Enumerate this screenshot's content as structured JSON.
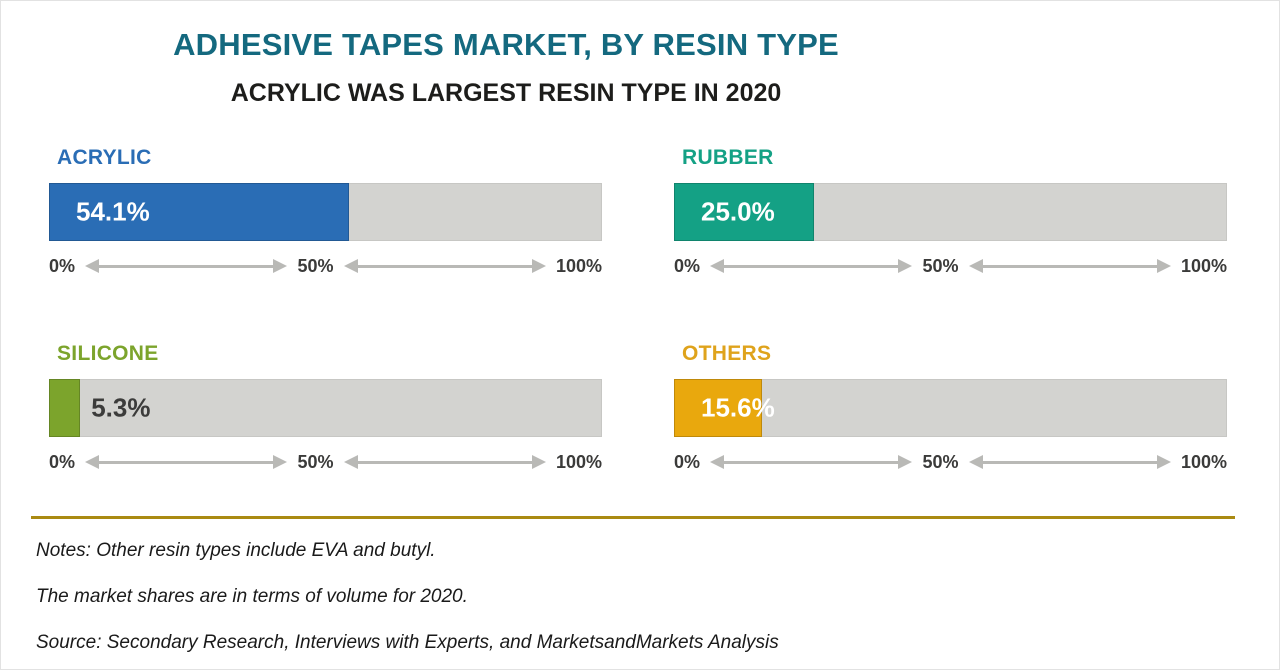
{
  "theme": {
    "title-color": "#14697f",
    "subtitle-color": "#1d1d1b",
    "track-color": "#d3d3d0",
    "axis-text-color": "#3b3b3a",
    "arrow-color": "#b9b9b6",
    "divider-color": "#aa8a12",
    "notes-color": "#1a1a1a"
  },
  "header": {
    "title": "ADHESIVE TAPES MARKET, BY RESIN TYPE",
    "subtitle": "ACRYLIC WAS LARGEST RESIN TYPE IN 2020"
  },
  "axis": {
    "ticks": [
      "0%",
      "50%",
      "100%"
    ]
  },
  "panels": [
    {
      "label": "ACRYLIC",
      "value": "54.1%",
      "pct": 54.1,
      "color": "#2a6db5",
      "label_color": "#2a6db5",
      "value_style": "light"
    },
    {
      "label": "RUBBER",
      "value": "25.0%",
      "pct": 25.0,
      "color": "#14a185",
      "label_color": "#14a185",
      "value_style": "light"
    },
    {
      "label": "SILICONE",
      "value": "5.3%",
      "pct": 5.3,
      "color": "#7ca42c",
      "label_color": "#7ca42c",
      "value_style": "dark"
    },
    {
      "label": "OTHERS",
      "value": "15.6%",
      "pct": 15.6,
      "color": "#e9a80d",
      "label_color": "#dfa31c",
      "value_style": "light"
    }
  ],
  "notes": {
    "line1": "Notes: Other resin types include EVA and butyl.",
    "line2": "The market shares are in terms of volume for 2020.",
    "line3": "Source: Secondary Research, Interviews with Experts, and MarketsandMarkets Analysis"
  },
  "chart_data": {
    "type": "bar",
    "orientation": "horizontal",
    "title": "ADHESIVE TAPES MARKET, BY RESIN TYPE",
    "subtitle": "ACRYLIC WAS LARGEST RESIN TYPE IN 2020",
    "categories": [
      "Acrylic",
      "Rubber",
      "Silicone",
      "Others"
    ],
    "values": [
      54.1,
      25.0,
      5.3,
      15.6
    ],
    "unit": "%",
    "xlim": [
      0,
      100
    ],
    "tick_labels": [
      "0%",
      "50%",
      "100%"
    ],
    "colors": [
      "#2a6db5",
      "#14a185",
      "#7ca42c",
      "#e9a80d"
    ],
    "legend": false,
    "grid": false,
    "notes": [
      "Notes: Other resin types include EVA and butyl.",
      "The market shares are in terms of volume for 2020.",
      "Source: Secondary Research, Interviews with Experts, and MarketsandMarkets Analysis"
    ]
  }
}
